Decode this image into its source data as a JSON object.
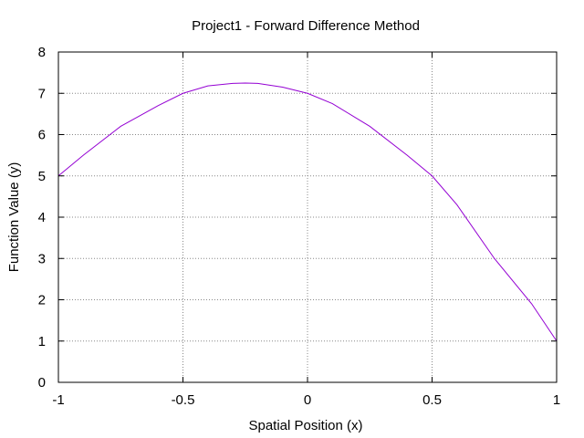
{
  "chart_data": {
    "type": "line",
    "title": "Project1 - Forward Difference Method",
    "xlabel": "Spatial Position (x)",
    "ylabel": "Function Value (y)",
    "xlim": [
      -1,
      1
    ],
    "ylim": [
      0,
      8
    ],
    "x_ticks": [
      -1,
      -0.5,
      0,
      0.5,
      1
    ],
    "x_tick_labels": [
      "-1",
      "-0.5",
      "0",
      "0.5",
      "1"
    ],
    "y_ticks": [
      0,
      1,
      2,
      3,
      4,
      5,
      6,
      7,
      8
    ],
    "y_tick_labels": [
      "0",
      "1",
      "2",
      "3",
      "4",
      "5",
      "6",
      "7",
      "8"
    ],
    "grid": true,
    "legend": "none",
    "series": [
      {
        "color": "#9400d3",
        "x": [
          -1.0,
          -0.9,
          -0.75,
          -0.6,
          -0.5,
          -0.4,
          -0.3,
          -0.25,
          -0.2,
          -0.1,
          0.0,
          0.1,
          0.25,
          0.4,
          0.5,
          0.6,
          0.75,
          0.9,
          1.0
        ],
        "y": [
          5.0,
          5.5,
          6.2,
          6.7,
          7.0,
          7.18,
          7.24,
          7.25,
          7.24,
          7.15,
          7.0,
          6.75,
          6.2,
          5.5,
          5.0,
          4.3,
          3.0,
          1.9,
          1.0
        ]
      }
    ]
  }
}
